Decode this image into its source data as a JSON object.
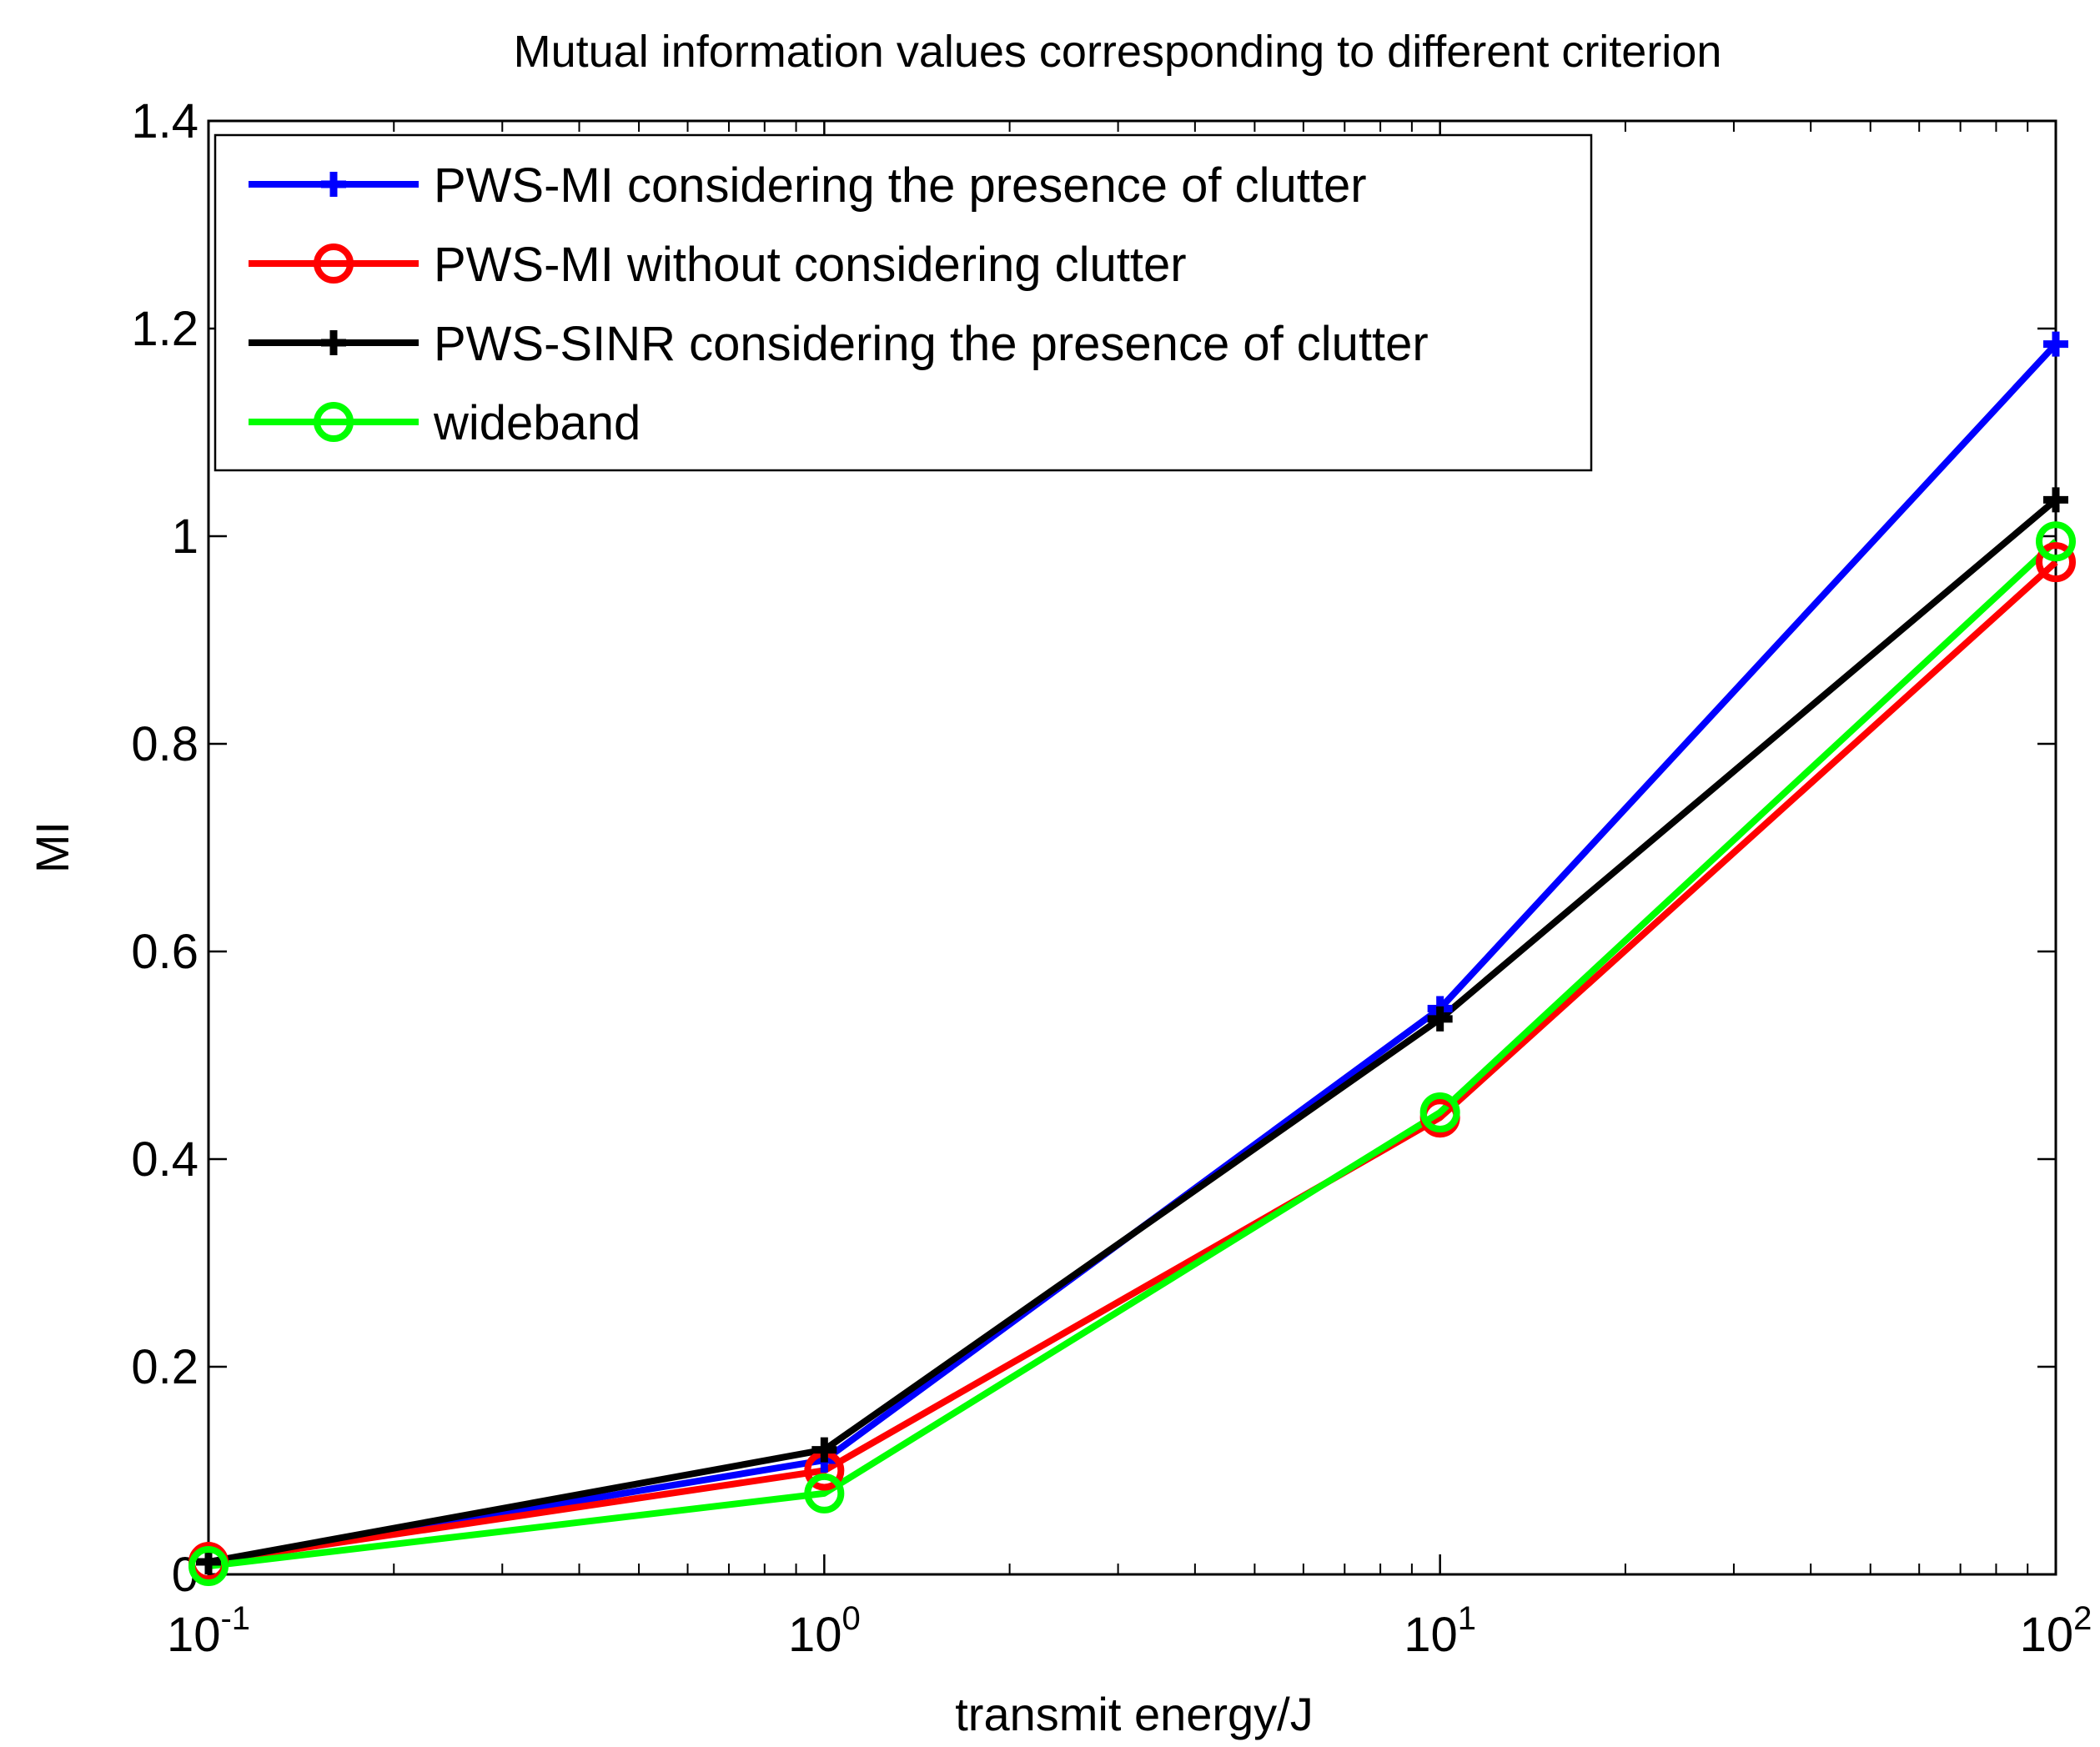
{
  "chart_data": {
    "type": "line",
    "title": "Mutual information values corresponding to different criterion",
    "xlabel": "transmit energy/J",
    "ylabel": "MI",
    "xscale": "log",
    "xlim": [
      0.1,
      100
    ],
    "ylim": [
      0,
      1.4
    ],
    "grid": false,
    "legend_position": "top-left",
    "x": [
      0.1,
      1,
      10,
      100
    ],
    "x_ticks": [
      {
        "value": 0.1,
        "base": "10",
        "exp": "-1"
      },
      {
        "value": 1,
        "base": "10",
        "exp": "0"
      },
      {
        "value": 10,
        "base": "10",
        "exp": "1"
      },
      {
        "value": 100,
        "base": "10",
        "exp": "2"
      }
    ],
    "y_ticks": [
      {
        "value": 0,
        "label": "0"
      },
      {
        "value": 0.2,
        "label": "0.2"
      },
      {
        "value": 0.4,
        "label": "0.4"
      },
      {
        "value": 0.6,
        "label": "0.6"
      },
      {
        "value": 0.8,
        "label": "0.8"
      },
      {
        "value": 1.0,
        "label": "1"
      },
      {
        "value": 1.2,
        "label": "1.2"
      },
      {
        "value": 1.4,
        "label": "1.4"
      }
    ],
    "series": [
      {
        "name": "PWS-MI considering the presence of clutter",
        "color": "#0000ff",
        "marker": "plus",
        "values": [
          0.012,
          0.11,
          0.545,
          1.185
        ]
      },
      {
        "name": "PWS-MI without considering clutter",
        "color": "#ff0000",
        "marker": "circle",
        "values": [
          0.012,
          0.1,
          0.44,
          0.975
        ]
      },
      {
        "name": "PWS-SINR considering the presence of clutter",
        "color": "#000000",
        "marker": "plus",
        "values": [
          0.012,
          0.12,
          0.535,
          1.035
        ]
      },
      {
        "name": "wideband",
        "color": "#00ff00",
        "marker": "circle",
        "values": [
          0.008,
          0.078,
          0.445,
          0.995
        ]
      }
    ]
  }
}
